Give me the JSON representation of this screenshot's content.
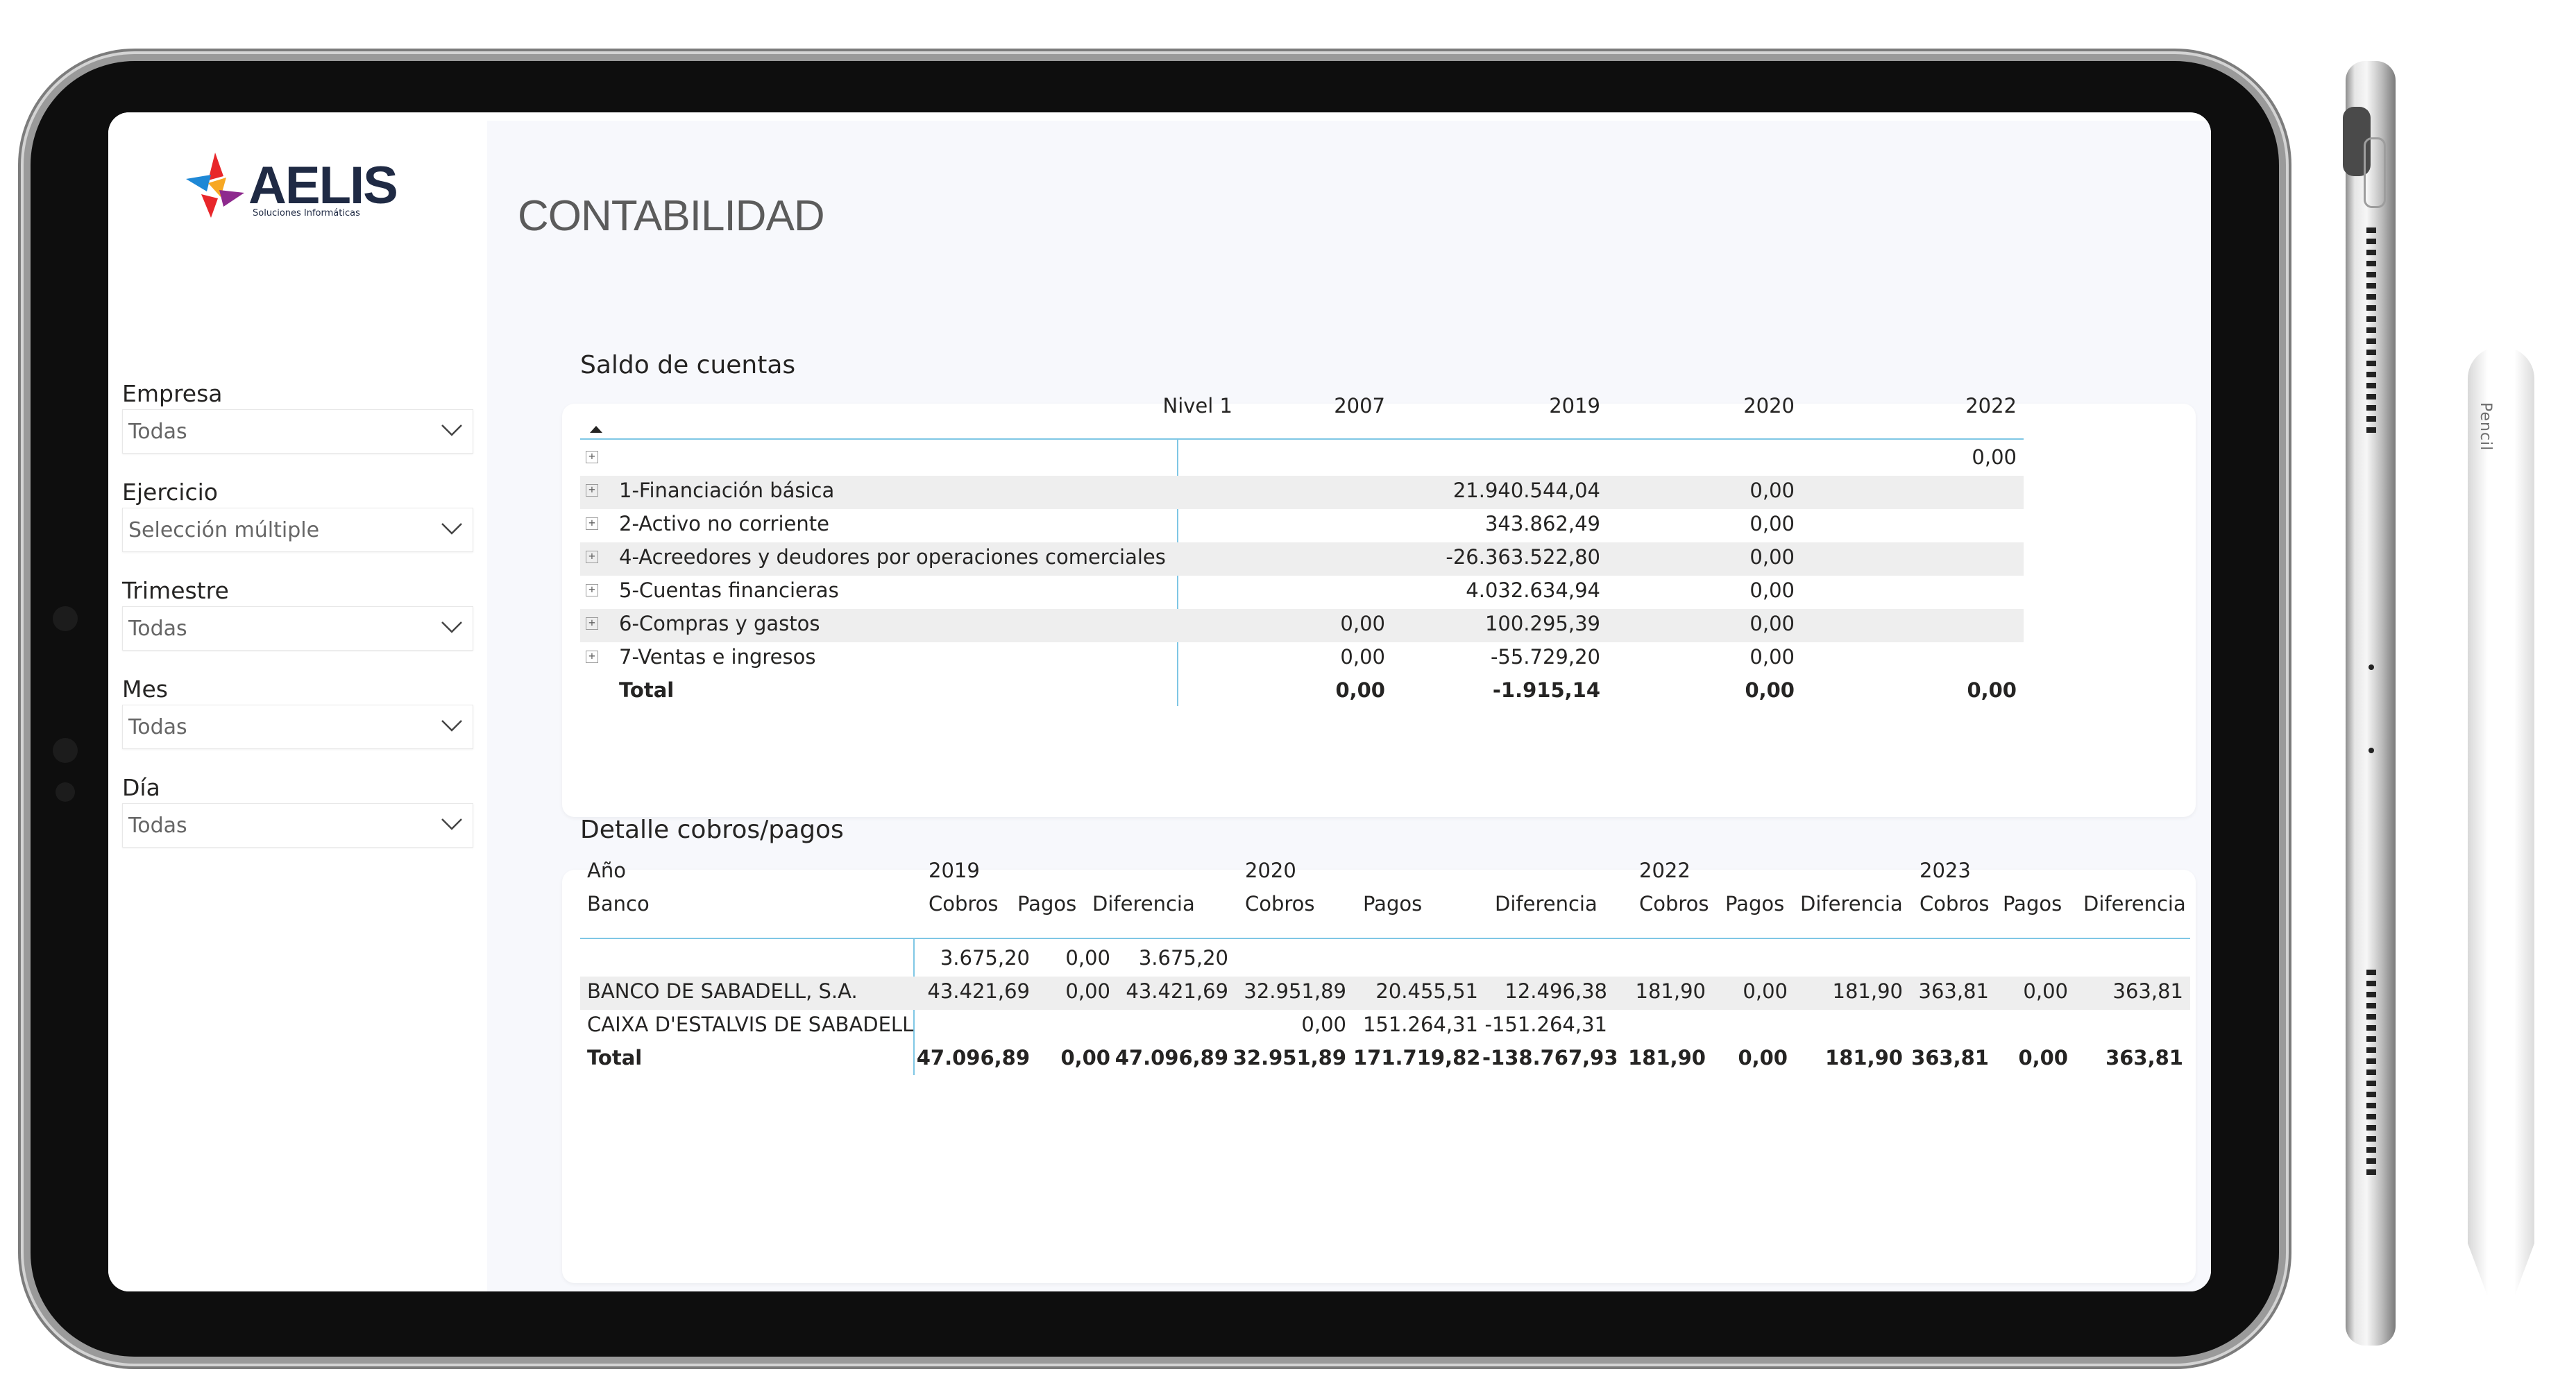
{
  "app": {
    "logo_text": "AELIS",
    "logo_subtitle": "Soluciones Informáticas",
    "page_title": "CONTABILIDAD",
    "pencil_label": "Pencil"
  },
  "slicers": [
    {
      "label": "Empresa",
      "value": "Todas"
    },
    {
      "label": "Ejercicio",
      "value": "Selección múltiple"
    },
    {
      "label": "Trimestre",
      "value": "Todas"
    },
    {
      "label": "Mes",
      "value": "Todas"
    },
    {
      "label": "Día",
      "value": "Todas"
    }
  ],
  "saldo": {
    "title": "Saldo de cuentas",
    "level_header": "Nivel 1",
    "columns": [
      "2007",
      "2019",
      "2020",
      "2022"
    ],
    "rows": [
      {
        "name": "",
        "values": [
          "",
          "",
          "",
          "0,00"
        ]
      },
      {
        "name": "1-Financiación básica",
        "values": [
          "",
          "21.940.544,04",
          "0,00",
          ""
        ]
      },
      {
        "name": "2-Activo no corriente",
        "values": [
          "",
          "343.862,49",
          "0,00",
          ""
        ]
      },
      {
        "name": "4-Acreedores y deudores por operaciones comerciales",
        "values": [
          "",
          "-26.363.522,80",
          "0,00",
          ""
        ]
      },
      {
        "name": "5-Cuentas financieras",
        "values": [
          "",
          "4.032.634,94",
          "0,00",
          ""
        ]
      },
      {
        "name": "6-Compras y gastos",
        "values": [
          "0,00",
          "100.295,39",
          "0,00",
          ""
        ]
      },
      {
        "name": "7-Ventas e ingresos",
        "values": [
          "0,00",
          "-55.729,20",
          "0,00",
          ""
        ]
      }
    ],
    "total": {
      "name": "Total",
      "values": [
        "0,00",
        "-1.915,14",
        "0,00",
        "0,00"
      ]
    }
  },
  "detalle": {
    "title": "Detalle cobros/pagos",
    "row_header_1": "Año",
    "row_header_2": "Banco",
    "years": [
      "2019",
      "2020",
      "2022",
      "2023"
    ],
    "subcolumns": [
      "Cobros",
      "Pagos",
      "Diferencia"
    ],
    "rows": [
      {
        "name": "",
        "values": [
          "3.675,20",
          "0,00",
          "3.675,20",
          "",
          "",
          "",
          "",
          "",
          "",
          "",
          "",
          ""
        ]
      },
      {
        "name": "BANCO DE SABADELL, S.A.",
        "values": [
          "43.421,69",
          "0,00",
          "43.421,69",
          "32.951,89",
          "20.455,51",
          "12.496,38",
          "181,90",
          "0,00",
          "181,90",
          "363,81",
          "0,00",
          "363,81"
        ]
      },
      {
        "name": "CAIXA D'ESTALVIS DE SABADELL",
        "values": [
          "",
          "",
          "",
          "0,00",
          "151.264,31",
          "-151.264,31",
          "",
          "",
          "",
          "",
          "",
          ""
        ]
      }
    ],
    "total": {
      "name": "Total",
      "values": [
        "47.096,89",
        "0,00",
        "47.096,89",
        "32.951,89",
        "171.719,82",
        "-138.767,93",
        "181,90",
        "0,00",
        "181,90",
        "363,81",
        "0,00",
        "363,81"
      ]
    }
  }
}
